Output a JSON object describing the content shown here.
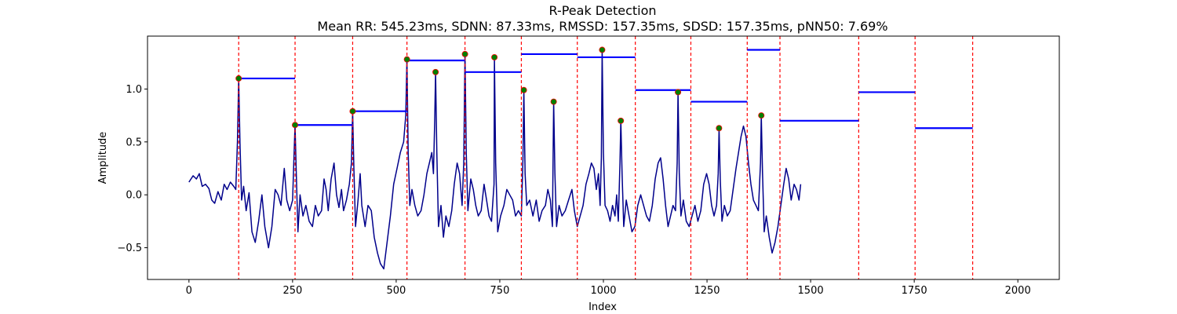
{
  "chart_data": {
    "type": "line",
    "title": "R-Peak Detection",
    "subtitle": "Mean RR: 545.23ms, SDNN: 87.33ms, RMSSD: 157.35ms, SDSD: 157.35ms, pNN50: 7.69%",
    "xlabel": "Index",
    "ylabel": "Amplitude",
    "xlim": [
      -100,
      2100
    ],
    "ylim": [
      -0.8,
      1.5
    ],
    "xticks": [
      0,
      250,
      500,
      750,
      1000,
      1250,
      1500,
      1750,
      2000
    ],
    "xtick_labels": [
      "0",
      "250",
      "500",
      "750",
      "1000",
      "1250",
      "1500",
      "1750",
      "2000"
    ],
    "yticks": [
      -0.5,
      0.0,
      0.5,
      1.0
    ],
    "ytick_labels": [
      "−0.5",
      "0.0",
      "0.5",
      "1.0"
    ],
    "grid": false,
    "signal": {
      "color": "#00008b",
      "points": [
        [
          0,
          0.12
        ],
        [
          10,
          0.18
        ],
        [
          18,
          0.15
        ],
        [
          25,
          0.2
        ],
        [
          32,
          0.08
        ],
        [
          40,
          0.1
        ],
        [
          48,
          0.06
        ],
        [
          55,
          -0.05
        ],
        [
          62,
          -0.08
        ],
        [
          70,
          0.03
        ],
        [
          78,
          -0.05
        ],
        [
          85,
          0.1
        ],
        [
          92,
          0.05
        ],
        [
          100,
          0.12
        ],
        [
          108,
          0.08
        ],
        [
          113,
          0.05
        ],
        [
          117,
          0.5
        ],
        [
          120,
          1.1
        ],
        [
          123,
          0.5
        ],
        [
          127,
          -0.05
        ],
        [
          132,
          0.08
        ],
        [
          138,
          -0.15
        ],
        [
          145,
          0.02
        ],
        [
          152,
          -0.35
        ],
        [
          160,
          -0.45
        ],
        [
          168,
          -0.25
        ],
        [
          176,
          0.0
        ],
        [
          183,
          -0.3
        ],
        [
          192,
          -0.5
        ],
        [
          200,
          -0.3
        ],
        [
          208,
          0.05
        ],
        [
          215,
          0.0
        ],
        [
          222,
          -0.1
        ],
        [
          230,
          0.25
        ],
        [
          236,
          -0.05
        ],
        [
          243,
          -0.15
        ],
        [
          250,
          -0.05
        ],
        [
          253,
          0.3
        ],
        [
          256,
          0.66
        ],
        [
          259,
          0.2
        ],
        [
          263,
          -0.35
        ],
        [
          268,
          0.0
        ],
        [
          275,
          -0.2
        ],
        [
          282,
          -0.1
        ],
        [
          290,
          -0.25
        ],
        [
          298,
          -0.3
        ],
        [
          305,
          -0.1
        ],
        [
          312,
          -0.2
        ],
        [
          320,
          -0.15
        ],
        [
          326,
          0.15
        ],
        [
          331,
          0.05
        ],
        [
          336,
          -0.15
        ],
        [
          343,
          0.15
        ],
        [
          350,
          0.3
        ],
        [
          356,
          0.0
        ],
        [
          362,
          -0.12
        ],
        [
          368,
          0.05
        ],
        [
          373,
          -0.15
        ],
        [
          380,
          -0.05
        ],
        [
          387,
          0.1
        ],
        [
          392,
          0.3
        ],
        [
          395,
          0.79
        ],
        [
          398,
          0.25
        ],
        [
          402,
          -0.3
        ],
        [
          408,
          -0.05
        ],
        [
          413,
          0.2
        ],
        [
          417,
          -0.1
        ],
        [
          425,
          -0.3
        ],
        [
          432,
          -0.1
        ],
        [
          440,
          -0.15
        ],
        [
          447,
          -0.4
        ],
        [
          455,
          -0.55
        ],
        [
          462,
          -0.65
        ],
        [
          470,
          -0.7
        ],
        [
          478,
          -0.45
        ],
        [
          486,
          -0.2
        ],
        [
          494,
          0.1
        ],
        [
          502,
          0.25
        ],
        [
          510,
          0.4
        ],
        [
          518,
          0.5
        ],
        [
          523,
          0.75
        ],
        [
          526,
          1.28
        ],
        [
          529,
          0.4
        ],
        [
          533,
          -0.1
        ],
        [
          538,
          0.05
        ],
        [
          545,
          -0.1
        ],
        [
          552,
          -0.2
        ],
        [
          560,
          -0.15
        ],
        [
          567,
          0.0
        ],
        [
          574,
          0.2
        ],
        [
          580,
          0.3
        ],
        [
          586,
          0.4
        ],
        [
          590,
          0.2
        ],
        [
          593,
          0.7
        ],
        [
          595,
          1.16
        ],
        [
          598,
          0.4
        ],
        [
          602,
          -0.3
        ],
        [
          608,
          -0.1
        ],
        [
          614,
          -0.4
        ],
        [
          620,
          -0.2
        ],
        [
          627,
          -0.3
        ],
        [
          634,
          -0.15
        ],
        [
          640,
          0.1
        ],
        [
          647,
          0.3
        ],
        [
          653,
          0.2
        ],
        [
          659,
          -0.1
        ],
        [
          663,
          0.3
        ],
        [
          666,
          1.33
        ],
        [
          669,
          0.4
        ],
        [
          673,
          -0.15
        ],
        [
          680,
          0.15
        ],
        [
          686,
          0.05
        ],
        [
          692,
          -0.1
        ],
        [
          698,
          -0.2
        ],
        [
          705,
          -0.15
        ],
        [
          712,
          0.1
        ],
        [
          718,
          -0.05
        ],
        [
          724,
          -0.2
        ],
        [
          730,
          -0.25
        ],
        [
          736,
          0.1
        ],
        [
          737,
          1.3
        ],
        [
          740,
          0.3
        ],
        [
          745,
          -0.35
        ],
        [
          752,
          -0.2
        ],
        [
          760,
          -0.1
        ],
        [
          767,
          0.05
        ],
        [
          774,
          0.0
        ],
        [
          781,
          -0.05
        ],
        [
          788,
          -0.2
        ],
        [
          795,
          -0.15
        ],
        [
          802,
          -0.2
        ],
        [
          806,
          0.35
        ],
        [
          808,
          0.99
        ],
        [
          811,
          0.2
        ],
        [
          815,
          -0.1
        ],
        [
          822,
          -0.05
        ],
        [
          830,
          -0.2
        ],
        [
          838,
          -0.05
        ],
        [
          845,
          -0.25
        ],
        [
          852,
          -0.15
        ],
        [
          860,
          -0.1
        ],
        [
          866,
          0.05
        ],
        [
          872,
          -0.05
        ],
        [
          877,
          -0.3
        ],
        [
          880,
          0.88
        ],
        [
          883,
          0.2
        ],
        [
          887,
          -0.3
        ],
        [
          893,
          -0.1
        ],
        [
          900,
          -0.2
        ],
        [
          908,
          -0.15
        ],
        [
          916,
          -0.05
        ],
        [
          924,
          0.05
        ],
        [
          930,
          -0.15
        ],
        [
          937,
          -0.3
        ],
        [
          944,
          -0.2
        ],
        [
          951,
          -0.1
        ],
        [
          958,
          0.1
        ],
        [
          965,
          0.2
        ],
        [
          971,
          0.3
        ],
        [
          977,
          0.25
        ],
        [
          983,
          0.05
        ],
        [
          988,
          0.2
        ],
        [
          992,
          -0.1
        ],
        [
          995,
          0.35
        ],
        [
          997,
          1.37
        ],
        [
          1000,
          0.4
        ],
        [
          1004,
          -0.1
        ],
        [
          1010,
          -0.15
        ],
        [
          1016,
          -0.25
        ],
        [
          1022,
          -0.1
        ],
        [
          1028,
          -0.2
        ],
        [
          1032,
          0.0
        ],
        [
          1036,
          -0.25
        ],
        [
          1040,
          0.3
        ],
        [
          1042,
          0.7
        ],
        [
          1045,
          0.2
        ],
        [
          1049,
          -0.3
        ],
        [
          1055,
          -0.05
        ],
        [
          1062,
          -0.2
        ],
        [
          1069,
          -0.35
        ],
        [
          1076,
          -0.3
        ],
        [
          1083,
          -0.1
        ],
        [
          1090,
          0.0
        ],
        [
          1097,
          -0.1
        ],
        [
          1104,
          -0.2
        ],
        [
          1111,
          -0.25
        ],
        [
          1118,
          -0.1
        ],
        [
          1125,
          0.15
        ],
        [
          1132,
          0.3
        ],
        [
          1138,
          0.35
        ],
        [
          1144,
          0.15
        ],
        [
          1150,
          -0.1
        ],
        [
          1156,
          -0.3
        ],
        [
          1162,
          -0.2
        ],
        [
          1168,
          -0.1
        ],
        [
          1174,
          -0.15
        ],
        [
          1178,
          0.3
        ],
        [
          1180,
          0.97
        ],
        [
          1183,
          0.2
        ],
        [
          1187,
          -0.2
        ],
        [
          1193,
          -0.05
        ],
        [
          1200,
          -0.25
        ],
        [
          1207,
          -0.3
        ],
        [
          1214,
          -0.2
        ],
        [
          1221,
          -0.1
        ],
        [
          1228,
          -0.25
        ],
        [
          1235,
          -0.15
        ],
        [
          1242,
          0.1
        ],
        [
          1249,
          0.2
        ],
        [
          1255,
          0.1
        ],
        [
          1261,
          -0.1
        ],
        [
          1267,
          -0.2
        ],
        [
          1273,
          -0.1
        ],
        [
          1277,
          0.2
        ],
        [
          1279,
          0.63
        ],
        [
          1282,
          0.15
        ],
        [
          1286,
          -0.25
        ],
        [
          1292,
          -0.1
        ],
        [
          1299,
          -0.2
        ],
        [
          1306,
          -0.15
        ],
        [
          1313,
          0.05
        ],
        [
          1320,
          0.25
        ],
        [
          1326,
          0.4
        ],
        [
          1332,
          0.55
        ],
        [
          1338,
          0.65
        ],
        [
          1344,
          0.55
        ],
        [
          1350,
          0.3
        ],
        [
          1356,
          0.1
        ],
        [
          1362,
          -0.05
        ],
        [
          1368,
          -0.1
        ],
        [
          1374,
          -0.15
        ],
        [
          1379,
          0.3
        ],
        [
          1381,
          0.75
        ],
        [
          1384,
          0.2
        ],
        [
          1388,
          -0.35
        ],
        [
          1393,
          -0.2
        ],
        [
          1400,
          -0.4
        ],
        [
          1407,
          -0.55
        ],
        [
          1414,
          -0.45
        ],
        [
          1421,
          -0.3
        ],
        [
          1428,
          -0.1
        ],
        [
          1435,
          0.1
        ],
        [
          1441,
          0.25
        ],
        [
          1447,
          0.15
        ],
        [
          1453,
          -0.05
        ],
        [
          1460,
          0.1
        ],
        [
          1466,
          0.05
        ],
        [
          1472,
          -0.05
        ],
        [
          1476,
          0.1
        ]
      ]
    },
    "peaks": {
      "color": "#008000",
      "edge_color": "#ff0000",
      "x": [
        120,
        256,
        395,
        526,
        595,
        666,
        737,
        808,
        880,
        997,
        1042,
        1180,
        1279,
        1381
      ],
      "y": [
        1.1,
        0.66,
        0.79,
        1.28,
        1.16,
        1.33,
        1.3,
        0.99,
        0.88,
        1.37,
        0.7,
        0.97,
        0.63,
        0.75
      ]
    },
    "vlines": {
      "color": "#ff0000",
      "x": [
        120,
        256,
        395,
        526,
        666,
        802,
        937,
        1077,
        1211,
        1347,
        1426,
        1616,
        1752,
        1891
      ]
    },
    "rr_segments": {
      "color": "#0000ff",
      "segments": [
        {
          "x0": 120,
          "x1": 256,
          "y": 1.1
        },
        {
          "x0": 256,
          "x1": 395,
          "y": 0.66
        },
        {
          "x0": 395,
          "x1": 526,
          "y": 0.79
        },
        {
          "x0": 526,
          "x1": 666,
          "y": 1.27
        },
        {
          "x0": 666,
          "x1": 802,
          "y": 1.16
        },
        {
          "x0": 802,
          "x1": 937,
          "y": 1.33
        },
        {
          "x0": 937,
          "x1": 1077,
          "y": 1.3
        },
        {
          "x0": 1077,
          "x1": 1211,
          "y": 0.99
        },
        {
          "x0": 1211,
          "x1": 1347,
          "y": 0.88
        },
        {
          "x0": 1347,
          "x1": 1426,
          "y": 1.37
        },
        {
          "x0": 1426,
          "x1": 1616,
          "y": 0.7
        },
        {
          "x0": 1616,
          "x1": 1752,
          "y": 0.97
        },
        {
          "x0": 1752,
          "x1": 1891,
          "y": 0.63
        }
      ]
    }
  }
}
